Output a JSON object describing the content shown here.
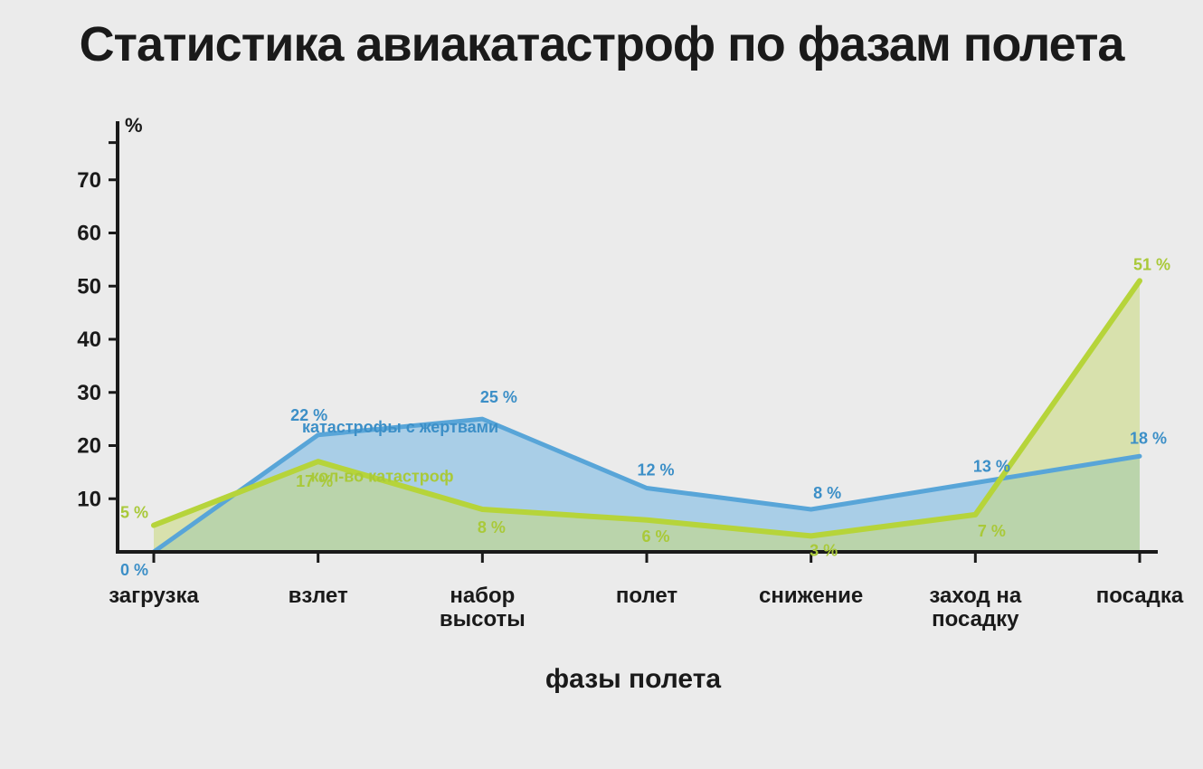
{
  "title": "Статистика авиакатастроф по фазам полета",
  "chart": {
    "type": "area",
    "background_color": "#ebebeb",
    "axis_color": "#1a1a1a",
    "axis_width": 4,
    "y_unit": "%",
    "y_ticks": [
      10,
      20,
      30,
      40,
      50,
      60,
      70
    ],
    "y_tick_fontsize": 24,
    "ylim": [
      0,
      80
    ],
    "x_axis_title": "фазы полета",
    "x_axis_title_fontsize": 30,
    "categories": [
      "загрузка",
      "взлет",
      "набор высоты",
      "полет",
      "снижение",
      "заход на посадку",
      "посадка"
    ],
    "category_fontsize": 24,
    "series": [
      {
        "id": "fatal",
        "label": "катастрофы с жертвами",
        "stroke": "#58a5d8",
        "fill": "#9ec9e6",
        "fill_opacity": 0.85,
        "stroke_width": 5,
        "label_color": "#3c8fc7",
        "values": [
          0,
          22,
          25,
          12,
          8,
          13,
          18
        ],
        "point_labels": [
          "0 %",
          "22 %",
          "25  %",
          "12 %",
          "8 %",
          "13 %",
          "18 %"
        ]
      },
      {
        "id": "all",
        "label": "кол-во катастроф",
        "stroke": "#b6d43a",
        "fill": "#c8d97a",
        "fill_opacity": 0.55,
        "stroke_width": 6,
        "label_color": "#a9c939",
        "values": [
          5,
          17,
          8,
          6,
          3,
          7,
          51
        ],
        "point_labels": [
          "5 %",
          "17 %",
          "8 %",
          "6 %",
          "3 %",
          "7 %",
          "51 %"
        ]
      }
    ],
    "title_fontsize": 54,
    "title_color": "#1a1a1a"
  }
}
